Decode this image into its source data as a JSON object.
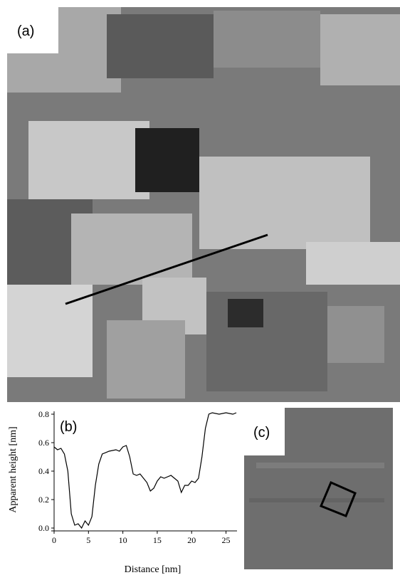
{
  "panel_a": {
    "label": "(a)"
  },
  "panel_c": {
    "label": "(c)"
  },
  "chart_data": {
    "type": "line",
    "annotation": "(b)",
    "x_label": "Distance [nm]",
    "y_label": "Apparent height [nm]",
    "x": [
      0,
      0.5,
      1,
      1.5,
      2,
      2.5,
      3,
      3.5,
      4,
      4.5,
      5,
      5.5,
      6,
      6.5,
      7,
      8,
      9,
      9.5,
      10,
      10.5,
      11,
      11.5,
      12,
      12.5,
      13,
      13.5,
      14,
      14.5,
      15,
      15.5,
      16,
      17,
      17.5,
      18,
      18.5,
      19,
      19.5,
      20,
      20.5,
      21,
      21.5,
      22,
      22.5,
      23,
      24,
      25,
      26,
      26.5
    ],
    "series": [
      {
        "color": "#000000",
        "values": [
          0.57,
          0.55,
          0.56,
          0.52,
          0.4,
          0.1,
          0.02,
          0.03,
          0.0,
          0.05,
          0.02,
          0.08,
          0.3,
          0.45,
          0.52,
          0.54,
          0.55,
          0.54,
          0.57,
          0.58,
          0.5,
          0.38,
          0.37,
          0.38,
          0.35,
          0.32,
          0.26,
          0.28,
          0.33,
          0.36,
          0.35,
          0.37,
          0.35,
          0.33,
          0.25,
          0.3,
          0.3,
          0.33,
          0.32,
          0.35,
          0.5,
          0.7,
          0.8,
          0.81,
          0.8,
          0.81,
          0.8,
          0.81
        ]
      }
    ],
    "xlim": [
      0,
      26.6
    ],
    "xticks": [
      0,
      5,
      10,
      15,
      20,
      25
    ],
    "ylim": [
      0,
      0.82
    ],
    "yticks": [
      {
        "value": 0,
        "label": "0.0"
      },
      0.2,
      0.4,
      0.6,
      0.8
    ]
  }
}
